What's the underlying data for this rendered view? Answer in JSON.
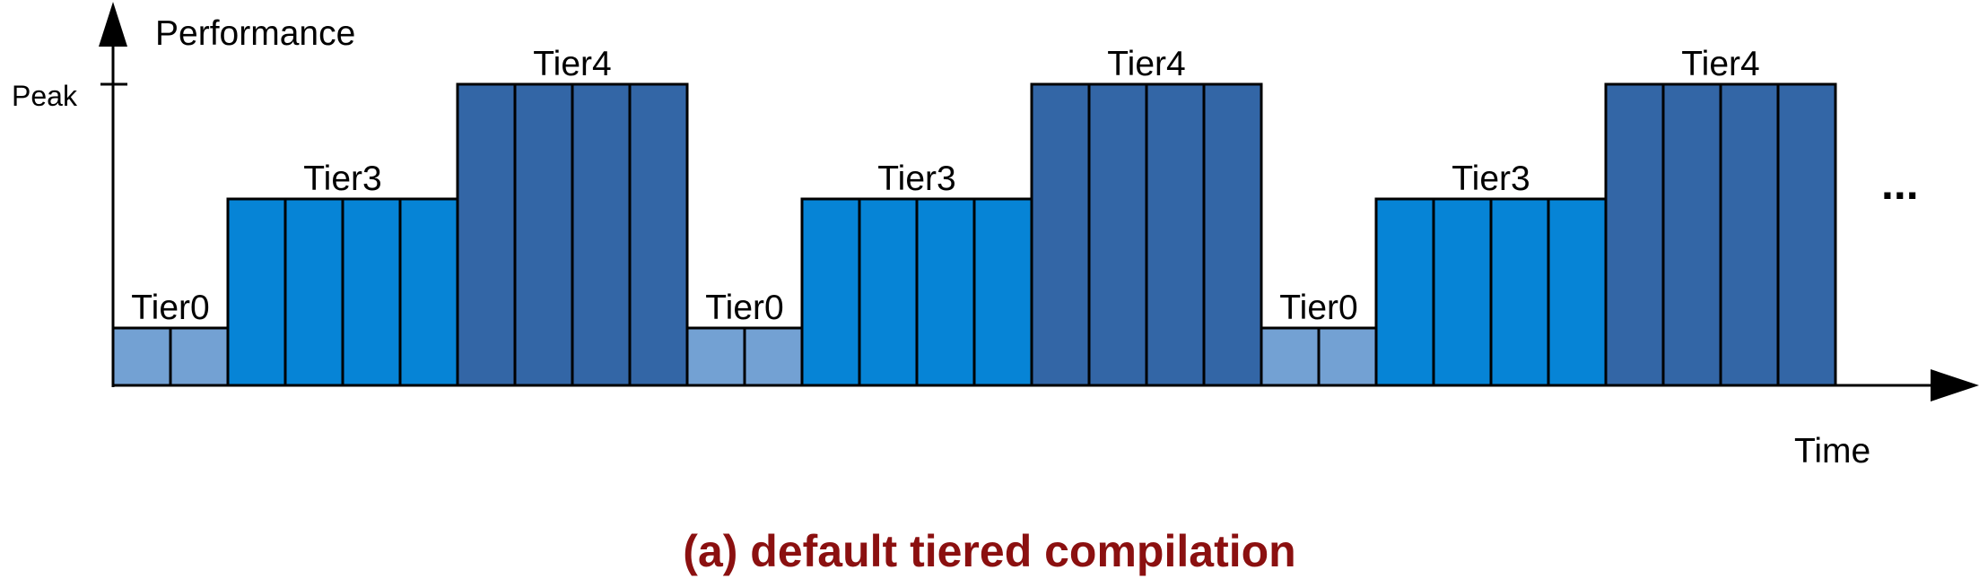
{
  "axes": {
    "y_label": "Performance",
    "peak_label": "Peak",
    "x_label": "Time"
  },
  "tiers": {
    "tier0": {
      "label": "Tier0",
      "blocks": 2,
      "level": 0.19,
      "color": "#73a1d3"
    },
    "tier3": {
      "label": "Tier3",
      "blocks": 4,
      "level": 0.62,
      "color": "#0684d6"
    },
    "tier4": {
      "label": "Tier4",
      "blocks": 4,
      "level": 1.0,
      "color": "#3366a6"
    }
  },
  "cycles": [
    {
      "sequence": [
        "tier0",
        "tier3",
        "tier4"
      ]
    },
    {
      "sequence": [
        "tier0",
        "tier3",
        "tier4"
      ]
    },
    {
      "sequence": [
        "tier0",
        "tier3",
        "tier4"
      ]
    }
  ],
  "continuation": "...",
  "caption": {
    "text": "(a) default tiered compilation",
    "color": "#8b1010"
  }
}
